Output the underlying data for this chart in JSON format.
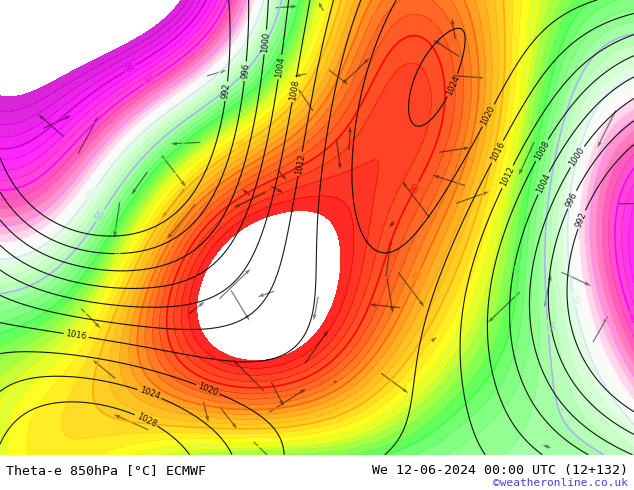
{
  "title_left": "Theta-e 850hPa [°C] ECMWF",
  "title_right": "We 12-06-2024 00:00 UTC (12+132)",
  "credit": "©weatheronline.co.uk",
  "bg_color": "#ffffff",
  "map_bg_color": "#e8e8e8",
  "figure_width": 6.34,
  "figure_height": 4.9,
  "dpi": 100,
  "bottom_bar_height": 0.072,
  "label_fontsize": 9.5,
  "credit_fontsize": 8,
  "credit_color": "#4444cc",
  "label_color": "#000000"
}
